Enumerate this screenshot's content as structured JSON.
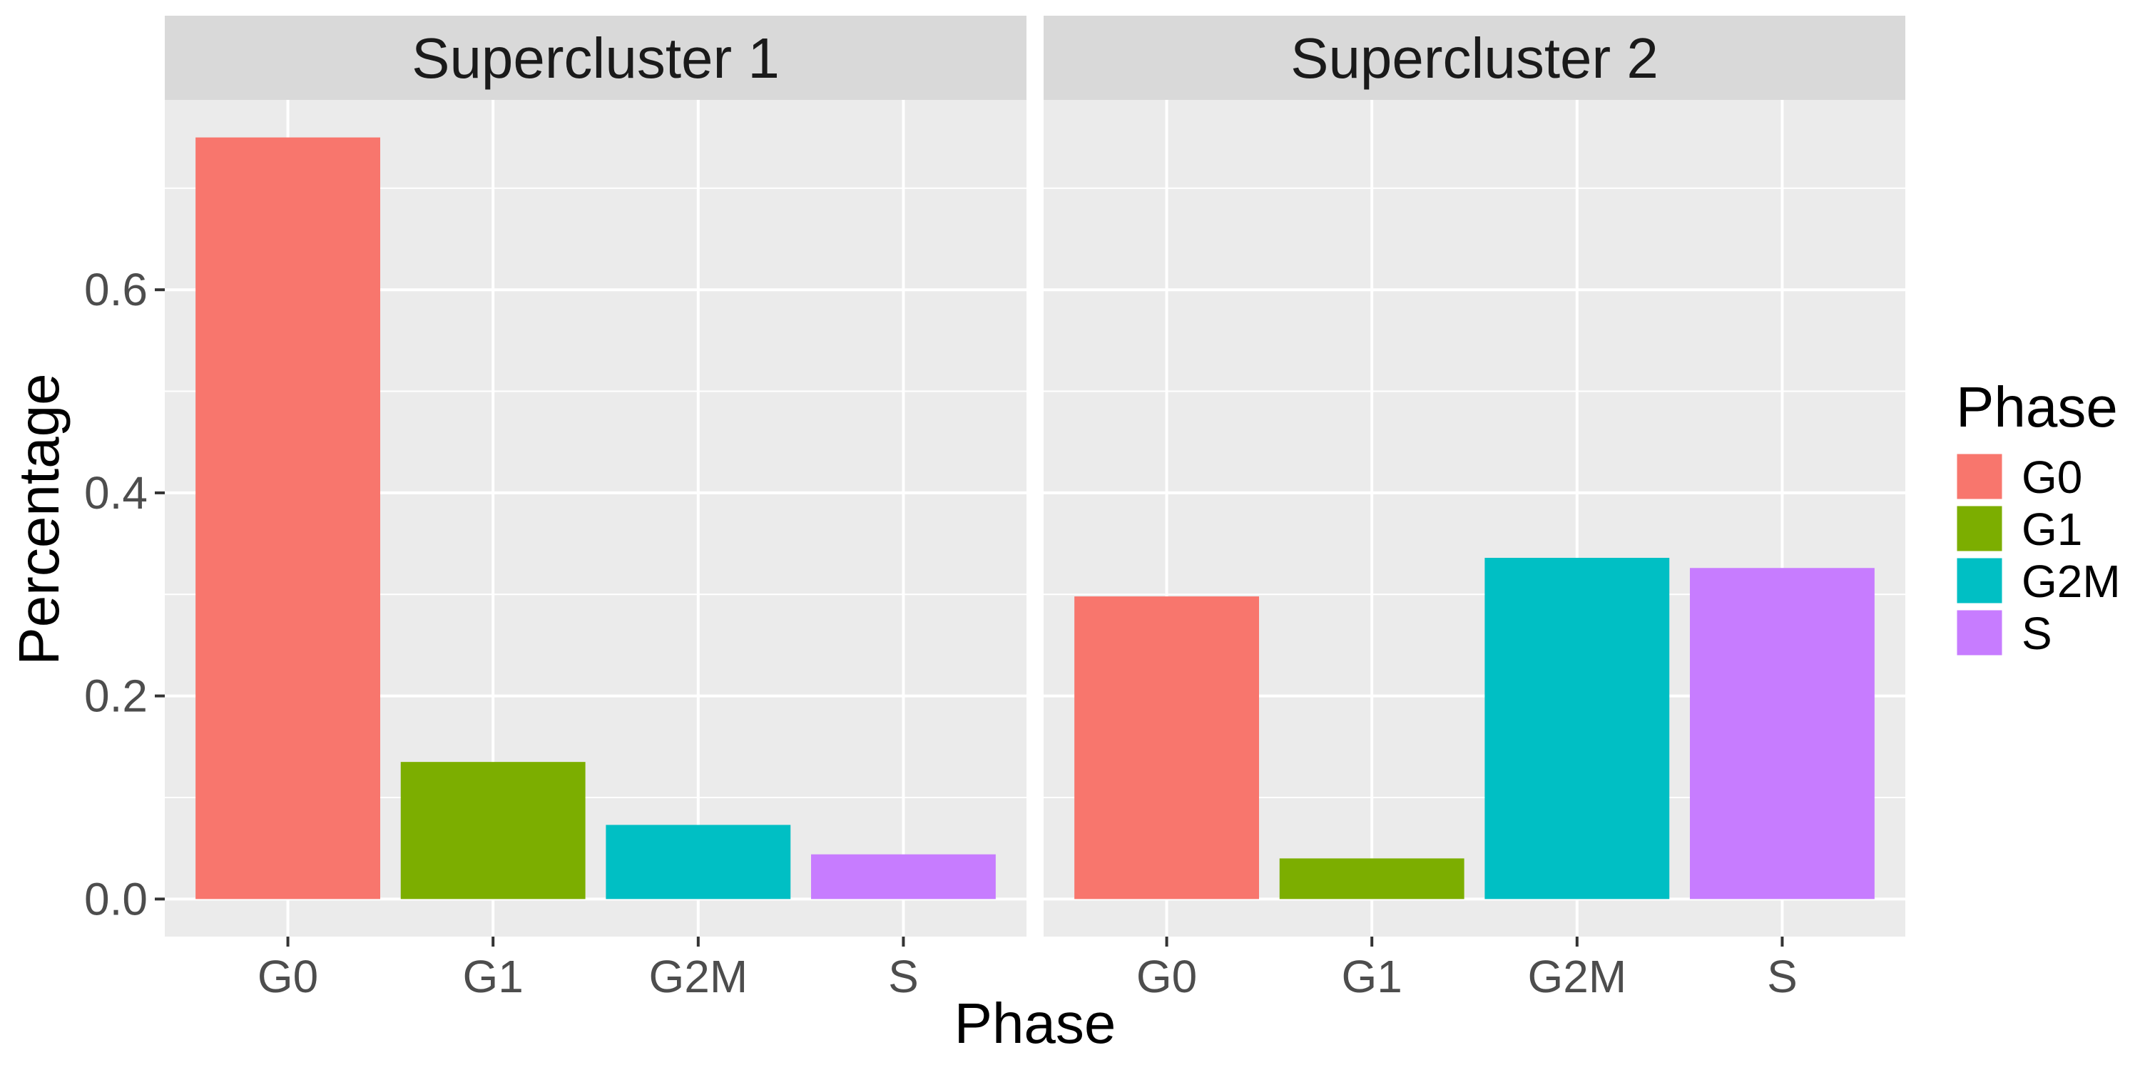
{
  "chart_data": {
    "type": "bar",
    "xlabel": "Phase",
    "ylabel": "Percentage",
    "ylim": [
      -0.037,
      0.787
    ],
    "yticks": [
      "0.0",
      "0.2",
      "0.4",
      "0.6"
    ],
    "ytick_values": [
      0,
      0.2,
      0.4,
      0.6
    ],
    "categories": [
      "G0",
      "G1",
      "G2M",
      "S"
    ],
    "colors": {
      "G0": "#F8766D",
      "G1": "#7CAE00",
      "G2M": "#00BFC4",
      "S": "#C77CFF"
    },
    "panel_bg": "#EBEBEB",
    "strip_bg": "#D9D9D9",
    "grid": true,
    "panels": [
      {
        "title": "Supercluster 1",
        "values": [
          0.75,
          0.135,
          0.073,
          0.044
        ]
      },
      {
        "title": "Supercluster 2",
        "values": [
          0.298,
          0.04,
          0.336,
          0.326
        ]
      }
    ],
    "legend": {
      "title": "Phase",
      "position": "right",
      "entries": [
        "G0",
        "G1",
        "G2M",
        "S"
      ]
    }
  }
}
